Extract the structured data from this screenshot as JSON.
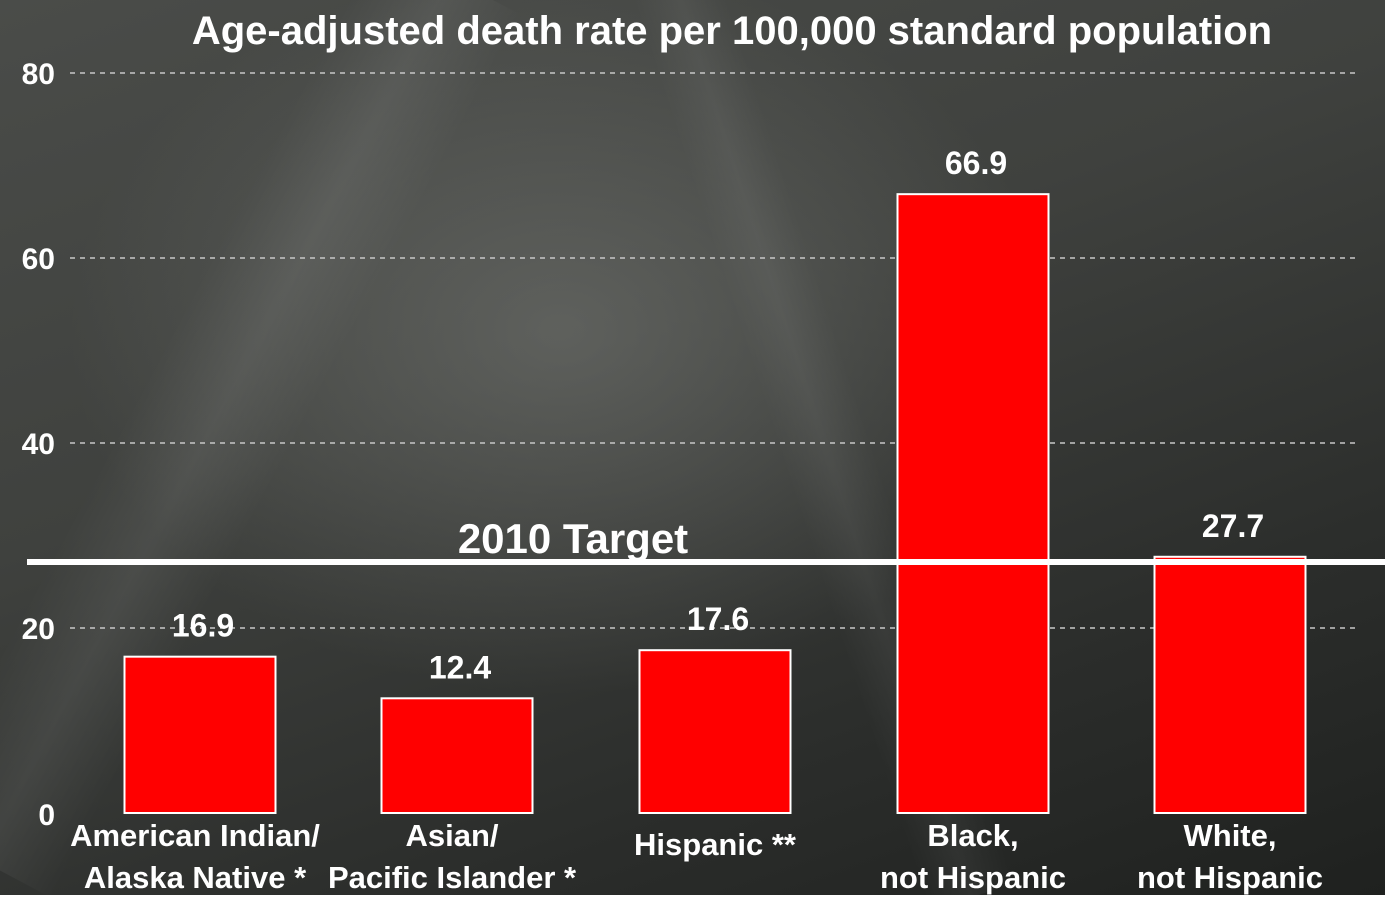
{
  "chart_data": {
    "type": "bar",
    "title": "Age-adjusted death rate per 100,000 standard population",
    "categories": [
      [
        "American Indian/",
        "Alaska Native *"
      ],
      [
        "Asian/",
        "Pacific Islander *"
      ],
      [
        "Hispanic **"
      ],
      [
        "Black,",
        "not Hispanic"
      ],
      [
        "White,",
        "not Hispanic"
      ]
    ],
    "values": [
      16.9,
      12.4,
      17.6,
      66.9,
      27.7
    ],
    "value_labels": [
      "16.9",
      "12.4",
      "17.6",
      "66.9",
      "27.7"
    ],
    "ylim": [
      0,
      80
    ],
    "yticks": [
      0,
      20,
      40,
      60,
      80
    ],
    "grid": true,
    "bar_color": "#ff0000",
    "target": {
      "label": "2010 Target",
      "value": 28
    }
  }
}
